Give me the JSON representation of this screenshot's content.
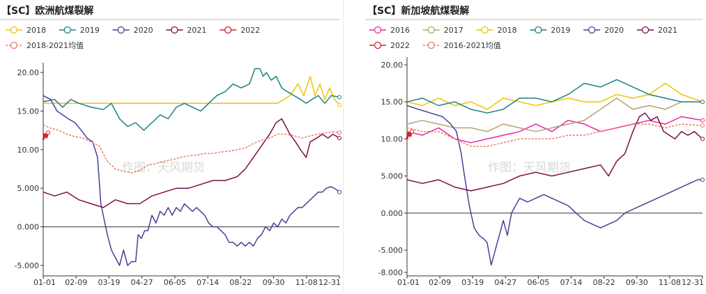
{
  "chart_data": [
    {
      "type": "line",
      "title": "【SC】欧洲航煤裂解",
      "watermark": "作图：天风期货",
      "xlabel": "",
      "ylabel": "",
      "x_tick_labels": [
        "01-01",
        "02-09",
        "03-19",
        "04-27",
        "06-05",
        "07-14",
        "08-22",
        "09-30",
        "11-08",
        "12-31"
      ],
      "y_tick_labels": [
        "-5.000",
        "0.000",
        "5.000",
        "10.00",
        "15.00",
        "20.00"
      ],
      "ylim": [
        -5.5,
        21
      ],
      "grid": false,
      "legend_position": "top",
      "x_unit": "day-of-year",
      "series": [
        {
          "name": "2018",
          "color": "#f2c200",
          "dashed": false,
          "x": [
            1,
            50,
            100,
            150,
            200,
            250,
            290,
            305,
            315,
            322,
            330,
            336,
            342,
            348,
            354,
            360,
            366
          ],
          "values": [
            16,
            16,
            16,
            16,
            16,
            16,
            16,
            17,
            18.5,
            17,
            19.5,
            17,
            18.5,
            16.5,
            18,
            16.5,
            15.8
          ]
        },
        {
          "name": "2019",
          "color": "#1e7f7f",
          "dashed": false,
          "x": [
            1,
            15,
            25,
            35,
            45,
            60,
            75,
            85,
            95,
            105,
            115,
            125,
            135,
            145,
            155,
            165,
            175,
            185,
            195,
            205,
            215,
            225,
            235,
            245,
            255,
            262,
            268,
            272,
            276,
            282,
            288,
            295,
            302,
            310,
            318,
            325,
            332,
            340,
            348,
            356,
            366
          ],
          "values": [
            16.2,
            16.5,
            15.5,
            16.5,
            16,
            15.5,
            15.2,
            16,
            14,
            13,
            13.5,
            12.5,
            13.5,
            14.5,
            14,
            15.5,
            16,
            15.5,
            15,
            16,
            17,
            17.5,
            18.5,
            18,
            18.5,
            20.5,
            20.5,
            19.5,
            20,
            19,
            19.5,
            18,
            17.5,
            17,
            16.5,
            16,
            16.5,
            17,
            16,
            17,
            16.8
          ]
        },
        {
          "name": "2020",
          "color": "#4a3f96",
          "dashed": false,
          "x": [
            1,
            10,
            18,
            25,
            32,
            40,
            48,
            55,
            62,
            68,
            72,
            76,
            80,
            85,
            90,
            95,
            100,
            105,
            110,
            115,
            118,
            122,
            126,
            130,
            135,
            140,
            145,
            150,
            155,
            160,
            165,
            170,
            175,
            180,
            185,
            190,
            195,
            200,
            205,
            210,
            215,
            220,
            225,
            230,
            235,
            240,
            245,
            250,
            255,
            260,
            265,
            270,
            275,
            280,
            285,
            290,
            295,
            300,
            305,
            310,
            315,
            320,
            325,
            330,
            335,
            340,
            345,
            350,
            355,
            360,
            366
          ],
          "values": [
            17,
            16.5,
            15,
            14.5,
            14,
            13.5,
            12.5,
            11.5,
            11,
            9,
            3,
            1,
            -1,
            -3,
            -4,
            -5,
            -3,
            -5,
            -4.5,
            -4.5,
            -1,
            -1.5,
            -0.5,
            -0.5,
            1.5,
            0.5,
            2,
            1.5,
            2.5,
            1.5,
            2.5,
            2,
            3,
            2.5,
            2,
            2.5,
            2,
            1.5,
            0.5,
            0,
            0,
            -0.5,
            -1,
            -2,
            -2,
            -2.5,
            -2,
            -2.5,
            -2,
            -2.5,
            -1.5,
            -1,
            0,
            -0.5,
            0.5,
            0,
            1,
            0.5,
            1.5,
            2,
            2.5,
            2.5,
            3,
            3.5,
            4,
            4.5,
            4.5,
            5,
            5.2,
            5,
            4.5
          ]
        },
        {
          "name": "2021",
          "color": "#7b0e4a",
          "dashed": false,
          "x": [
            1,
            15,
            30,
            45,
            60,
            75,
            90,
            105,
            120,
            135,
            150,
            165,
            180,
            195,
            210,
            225,
            240,
            250,
            260,
            270,
            280,
            288,
            295,
            300,
            305,
            312,
            318,
            325,
            330,
            338,
            345,
            352,
            358,
            366
          ],
          "values": [
            4.5,
            4,
            4.5,
            3.5,
            3,
            2.5,
            3.5,
            3,
            3,
            4,
            4.5,
            5,
            5,
            5.5,
            6,
            6,
            6.5,
            7.5,
            9,
            10.5,
            12,
            13.5,
            14,
            13,
            12,
            11,
            10,
            9,
            11,
            11.5,
            12,
            11.5,
            12,
            11.5
          ]
        },
        {
          "name": "2022",
          "color": "#d0202a",
          "dashed": false,
          "x": [
            1,
            3,
            5,
            7
          ],
          "values": [
            11.3,
            12,
            11.6,
            12.2
          ]
        },
        {
          "name": "2018-2021均值",
          "color": "#f07868",
          "dashed": true,
          "x": [
            1,
            10,
            20,
            30,
            40,
            50,
            60,
            70,
            80,
            90,
            100,
            110,
            120,
            130,
            140,
            150,
            160,
            170,
            180,
            190,
            200,
            210,
            220,
            230,
            240,
            250,
            260,
            270,
            280,
            290,
            300,
            310,
            320,
            330,
            340,
            350,
            360,
            366
          ],
          "values": [
            13.2,
            12.8,
            12.5,
            12,
            11.7,
            11.5,
            11,
            10.5,
            8.5,
            7.5,
            7.2,
            7,
            7.3,
            8,
            8.2,
            8.5,
            8.7,
            9,
            9.2,
            9.3,
            9.5,
            9.5,
            9.7,
            9.8,
            10,
            10.2,
            10.8,
            11.2,
            11.5,
            12,
            12,
            11.8,
            11.5,
            11.8,
            12,
            12.2,
            12.3,
            12.2
          ]
        }
      ]
    },
    {
      "type": "line",
      "title": "【SC】新加坡航煤裂解",
      "watermark": "作图：天风期货",
      "xlabel": "",
      "ylabel": "",
      "x_tick_labels": [
        "01-01",
        "02-09",
        "03-19",
        "04-27",
        "06-05",
        "07-14",
        "08-22",
        "09-30",
        "11-08",
        "12-31"
      ],
      "y_tick_labels": [
        "-8.000",
        "-5.000",
        "0.000",
        "5.000",
        "10.00",
        "15.00",
        "20.00"
      ],
      "ylim": [
        -8,
        20
      ],
      "grid": false,
      "legend_position": "top",
      "x_unit": "day-of-year",
      "series": [
        {
          "name": "2016",
          "color": "#e8289a",
          "dashed": false,
          "x": [
            1,
            20,
            40,
            60,
            80,
            100,
            120,
            140,
            160,
            180,
            200,
            220,
            240,
            260,
            280,
            300,
            320,
            340,
            366
          ],
          "values": [
            11,
            10.5,
            11.5,
            10,
            9.5,
            10,
            10.5,
            11,
            12,
            11,
            12.5,
            12,
            11,
            11.5,
            12,
            12.5,
            12,
            13,
            12.5
          ]
        },
        {
          "name": "2017",
          "color": "#b8a070",
          "dashed": false,
          "x": [
            1,
            20,
            40,
            60,
            80,
            100,
            120,
            140,
            160,
            180,
            200,
            220,
            240,
            260,
            280,
            300,
            320,
            340,
            366
          ],
          "values": [
            12,
            12.5,
            12,
            11.5,
            11.5,
            11,
            12,
            11.5,
            11,
            11.5,
            12,
            12.5,
            14,
            15.5,
            14,
            14.5,
            14,
            15,
            15
          ]
        },
        {
          "name": "2018",
          "color": "#f2c200",
          "dashed": false,
          "x": [
            1,
            20,
            40,
            60,
            80,
            100,
            120,
            140,
            160,
            180,
            200,
            220,
            240,
            260,
            280,
            300,
            320,
            340,
            366
          ],
          "values": [
            15,
            14.5,
            15.5,
            14.5,
            15,
            14,
            15.5,
            15,
            14.5,
            15,
            15.5,
            15,
            15,
            16,
            15.5,
            16,
            17.5,
            16,
            15
          ]
        },
        {
          "name": "2019",
          "color": "#1e7f7f",
          "dashed": false,
          "x": [
            1,
            20,
            40,
            60,
            80,
            100,
            120,
            140,
            160,
            180,
            200,
            220,
            240,
            260,
            280,
            300,
            320,
            340,
            366
          ],
          "values": [
            15,
            15.5,
            14.5,
            15,
            14,
            13.5,
            14,
            15.5,
            15.5,
            15,
            16,
            17.5,
            17,
            18,
            17,
            16,
            15.5,
            15,
            15
          ]
        },
        {
          "name": "2020",
          "color": "#4a3f96",
          "dashed": false,
          "x": [
            1,
            15,
            30,
            45,
            55,
            62,
            68,
            72,
            78,
            84,
            90,
            96,
            100,
            105,
            110,
            115,
            120,
            125,
            130,
            135,
            140,
            150,
            160,
            170,
            180,
            190,
            200,
            210,
            220,
            230,
            240,
            250,
            260,
            270,
            280,
            290,
            300,
            310,
            320,
            330,
            340,
            350,
            360,
            366
          ],
          "values": [
            14.5,
            14,
            13.5,
            13,
            12,
            11,
            8,
            5,
            1,
            -2,
            -3,
            -3.5,
            -4,
            -7,
            -5,
            -3,
            -1,
            -3,
            0,
            1,
            2,
            1.5,
            2,
            2.5,
            2,
            1.5,
            1,
            0,
            -1,
            -1.5,
            -2,
            -1.5,
            -1,
            0,
            0.5,
            1,
            1.5,
            2,
            2.5,
            3,
            3.5,
            4,
            4.5,
            4.5
          ]
        },
        {
          "name": "2021",
          "color": "#7b0e4a",
          "dashed": false,
          "x": [
            1,
            20,
            40,
            60,
            80,
            100,
            120,
            140,
            160,
            180,
            200,
            220,
            240,
            250,
            260,
            270,
            280,
            288,
            295,
            302,
            310,
            318,
            325,
            332,
            340,
            348,
            356,
            366
          ],
          "values": [
            4.5,
            4,
            4.5,
            3.5,
            3,
            3.5,
            4,
            5,
            5.5,
            5,
            5.5,
            6,
            6.5,
            5,
            7,
            8,
            11,
            13,
            13.5,
            12.5,
            13,
            11,
            10.5,
            10,
            11,
            10.5,
            11,
            10
          ]
        },
        {
          "name": "2022",
          "color": "#d0202a",
          "dashed": false,
          "x": [
            1,
            3,
            5,
            7
          ],
          "values": [
            10,
            10.8,
            10.4,
            11
          ]
        },
        {
          "name": "2016-2021均值",
          "color": "#f07868",
          "dashed": true,
          "x": [
            1,
            20,
            40,
            60,
            80,
            100,
            120,
            140,
            160,
            180,
            200,
            220,
            240,
            260,
            280,
            300,
            320,
            340,
            366
          ],
          "values": [
            11.5,
            11,
            11,
            10,
            9,
            9,
            9.5,
            10,
            10,
            10,
            10.5,
            10.5,
            11,
            11.5,
            12,
            12,
            11.5,
            12,
            11.8
          ]
        }
      ]
    }
  ]
}
